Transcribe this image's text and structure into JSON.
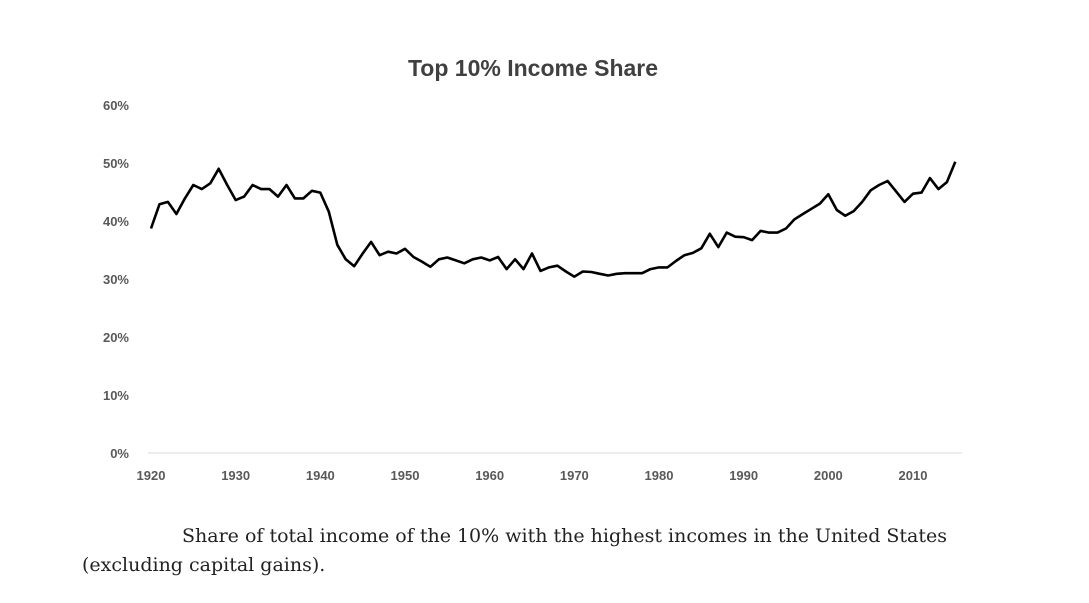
{
  "chart_data": {
    "type": "line",
    "title": "Top 10% Income Share",
    "xlabel": "",
    "ylabel": "",
    "xlim": [
      1920,
      2015
    ],
    "ylim": [
      0,
      60
    ],
    "grid": false,
    "x_ticks": [
      "1920",
      "1930",
      "1940",
      "1950",
      "1960",
      "1970",
      "1980",
      "1990",
      "2000",
      "2010"
    ],
    "y_ticks": [
      "0%",
      "10%",
      "20%",
      "30%",
      "40%",
      "50%",
      "60%"
    ],
    "series": [
      {
        "name": "Top 10% income share",
        "color": "#000000",
        "x": [
          1920,
          1921,
          1922,
          1923,
          1924,
          1925,
          1926,
          1927,
          1928,
          1929,
          1930,
          1931,
          1932,
          1933,
          1934,
          1935,
          1936,
          1937,
          1938,
          1939,
          1940,
          1941,
          1942,
          1943,
          1944,
          1945,
          1946,
          1947,
          1948,
          1949,
          1950,
          1951,
          1952,
          1953,
          1954,
          1955,
          1956,
          1957,
          1958,
          1959,
          1960,
          1961,
          1962,
          1963,
          1964,
          1965,
          1966,
          1967,
          1968,
          1969,
          1970,
          1971,
          1972,
          1973,
          1974,
          1975,
          1976,
          1977,
          1978,
          1979,
          1980,
          1981,
          1982,
          1983,
          1984,
          1985,
          1986,
          1987,
          1988,
          1989,
          1990,
          1991,
          1992,
          1993,
          1994,
          1995,
          1996,
          1997,
          1998,
          1999,
          2000,
          2001,
          2002,
          2003,
          2004,
          2005,
          2006,
          2007,
          2008,
          2009,
          2010,
          2011,
          2012,
          2013,
          2014,
          2015
        ],
        "values": [
          38.7,
          42.9,
          43.3,
          41.2,
          43.9,
          46.2,
          45.5,
          46.5,
          49.0,
          46.2,
          43.6,
          44.2,
          46.2,
          45.5,
          45.5,
          44.2,
          46.2,
          43.9,
          43.9,
          45.2,
          44.9,
          41.6,
          35.9,
          33.4,
          32.2,
          34.4,
          36.4,
          34.1,
          34.7,
          34.4,
          35.2,
          33.8,
          33.0,
          32.1,
          33.4,
          33.7,
          33.2,
          32.7,
          33.4,
          33.7,
          33.2,
          33.8,
          31.7,
          33.4,
          31.7,
          34.4,
          31.4,
          32.0,
          32.3,
          31.3,
          30.4,
          31.3,
          31.2,
          30.9,
          30.6,
          30.9,
          31.0,
          31.0,
          31.0,
          31.7,
          32.0,
          32.0,
          33.1,
          34.1,
          34.5,
          35.3,
          37.8,
          35.5,
          38.0,
          37.3,
          37.2,
          36.7,
          38.3,
          38.0,
          38.0,
          38.7,
          40.3,
          41.2,
          42.1,
          43.0,
          44.6,
          41.9,
          40.9,
          41.7,
          43.3,
          45.3,
          46.2,
          46.9,
          45.1,
          43.3,
          44.7,
          44.9,
          47.4,
          45.5,
          46.7,
          50.2
        ]
      }
    ]
  },
  "caption": "Share of total income of the 10% with the highest incomes in the United States (excluding capital gains)."
}
